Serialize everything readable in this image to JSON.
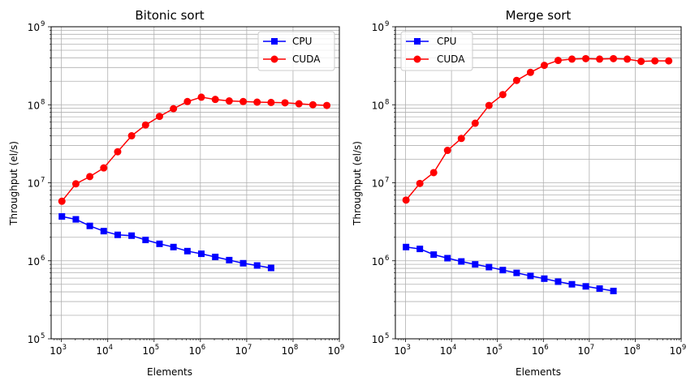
{
  "chart_data": [
    {
      "type": "line",
      "title": "Bitonic sort",
      "xlabel": "Elements",
      "ylabel": "Throughput (el/s)",
      "xscale": "log",
      "yscale": "log",
      "xlim": [
        600,
        1000000000
      ],
      "ylim": [
        100000,
        1000000000
      ],
      "grid": true,
      "legend": "top-right",
      "x_ticks": [
        {
          "b": "10",
          "e": "3",
          "v": 1000
        },
        {
          "b": "10",
          "e": "4",
          "v": 10000
        },
        {
          "b": "10",
          "e": "5",
          "v": 100000
        },
        {
          "b": "10",
          "e": "6",
          "v": 1000000
        },
        {
          "b": "10",
          "e": "7",
          "v": 10000000
        },
        {
          "b": "10",
          "e": "8",
          "v": 100000000
        },
        {
          "b": "10",
          "e": "9",
          "v": 1000000000
        }
      ],
      "y_ticks": [
        {
          "b": "10",
          "e": "5",
          "v": 100000
        },
        {
          "b": "10",
          "e": "6",
          "v": 1000000
        },
        {
          "b": "10",
          "e": "7",
          "v": 10000000
        },
        {
          "b": "10",
          "e": "8",
          "v": 100000000
        },
        {
          "b": "10",
          "e": "9",
          "v": 1000000000
        }
      ],
      "series": [
        {
          "name": "CPU",
          "color": "#0000ff",
          "marker": "square",
          "x": [
            1024,
            2048,
            4096,
            8192,
            16384,
            32768,
            65536,
            131072,
            262144,
            524288,
            1048576,
            2097152,
            4194304,
            8388608,
            16777216,
            33554432
          ],
          "y": [
            3700000,
            3400000,
            2800000,
            2400000,
            2150000,
            2100000,
            1850000,
            1650000,
            1500000,
            1330000,
            1230000,
            1120000,
            1020000,
            930000,
            870000,
            810000
          ]
        },
        {
          "name": "CUDA",
          "color": "#ff0000",
          "marker": "circle",
          "x": [
            1024,
            2048,
            4096,
            8192,
            16384,
            32768,
            65536,
            131072,
            262144,
            524288,
            1048576,
            2097152,
            4194304,
            8388608,
            16777216,
            33554432,
            67108864,
            134217728,
            268435456,
            536870912
          ],
          "y": [
            5800000,
            9700000,
            12000000,
            15500000,
            25000000,
            40000000,
            55000000,
            71000000,
            89000000,
            110000000,
            125000000,
            117000000,
            112000000,
            110000000,
            108000000,
            107000000,
            106000000,
            103000000,
            100000000,
            98000000
          ]
        }
      ]
    },
    {
      "type": "line",
      "title": "Merge sort",
      "xlabel": "Elements",
      "ylabel": "Throughput (el/s)",
      "xscale": "log",
      "yscale": "log",
      "xlim": [
        600,
        1000000000
      ],
      "ylim": [
        100000,
        1000000000
      ],
      "grid": true,
      "legend": "top-left",
      "x_ticks": [
        {
          "b": "10",
          "e": "3",
          "v": 1000
        },
        {
          "b": "10",
          "e": "4",
          "v": 10000
        },
        {
          "b": "10",
          "e": "5",
          "v": 100000
        },
        {
          "b": "10",
          "e": "6",
          "v": 1000000
        },
        {
          "b": "10",
          "e": "7",
          "v": 10000000
        },
        {
          "b": "10",
          "e": "8",
          "v": 100000000
        },
        {
          "b": "10",
          "e": "9",
          "v": 1000000000
        }
      ],
      "y_ticks": [
        {
          "b": "10",
          "e": "5",
          "v": 100000
        },
        {
          "b": "10",
          "e": "6",
          "v": 1000000
        },
        {
          "b": "10",
          "e": "7",
          "v": 10000000
        },
        {
          "b": "10",
          "e": "8",
          "v": 100000000
        },
        {
          "b": "10",
          "e": "9",
          "v": 1000000000
        }
      ],
      "series": [
        {
          "name": "CPU",
          "color": "#0000ff",
          "marker": "square",
          "x": [
            1024,
            2048,
            4096,
            8192,
            16384,
            32768,
            65536,
            131072,
            262144,
            524288,
            1048576,
            2097152,
            4194304,
            8388608,
            16777216,
            33554432
          ],
          "y": [
            1500000,
            1420000,
            1200000,
            1080000,
            980000,
            900000,
            830000,
            760000,
            700000,
            640000,
            590000,
            540000,
            500000,
            470000,
            440000,
            410000
          ]
        },
        {
          "name": "CUDA",
          "color": "#ff0000",
          "marker": "circle",
          "x": [
            1024,
            2048,
            4096,
            8192,
            16384,
            32768,
            65536,
            131072,
            262144,
            524288,
            1048576,
            2097152,
            4194304,
            8388608,
            16777216,
            33554432,
            67108864,
            134217728,
            268435456,
            536870912
          ],
          "y": [
            6000000,
            9800000,
            13500000,
            26000000,
            37000000,
            58000000,
            98000000,
            135000000,
            205000000,
            260000000,
            320000000,
            370000000,
            385000000,
            390000000,
            385000000,
            390000000,
            385000000,
            360000000,
            365000000,
            365000000
          ]
        }
      ]
    }
  ]
}
